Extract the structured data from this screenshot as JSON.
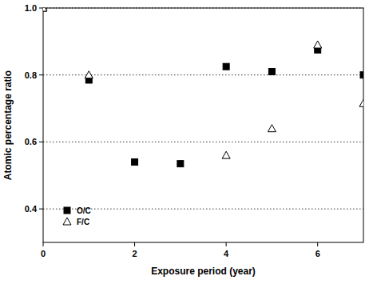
{
  "chart_data": {
    "type": "scatter",
    "x_label": "Exposure period (year)",
    "y_label": "Atomic percentage ratio",
    "xlim": [
      0,
      7
    ],
    "xticks": [
      0,
      2,
      4,
      6
    ],
    "ylim": [
      0.3,
      1.0
    ],
    "yticks": [
      0.4,
      0.6,
      0.8,
      {
        "value": 1,
        "label": "1.0"
      }
    ],
    "grid": "y",
    "legend": "lower-left",
    "series": [
      {
        "name": "O/C",
        "color": "#000000",
        "marker": "square",
        "x": [
          0,
          1,
          2,
          3,
          4,
          5,
          6,
          7
        ],
        "values": [
          1.0,
          0.785,
          0.54,
          0.535,
          0.825,
          0.81,
          0.875,
          0.8
        ]
      },
      {
        "name": "F/C",
        "color": "#000000",
        "marker": "open-triangle",
        "x": [
          0,
          1,
          4,
          5,
          6,
          7
        ],
        "values": [
          1.0,
          0.8,
          0.56,
          0.64,
          0.89,
          0.715
        ]
      }
    ]
  }
}
